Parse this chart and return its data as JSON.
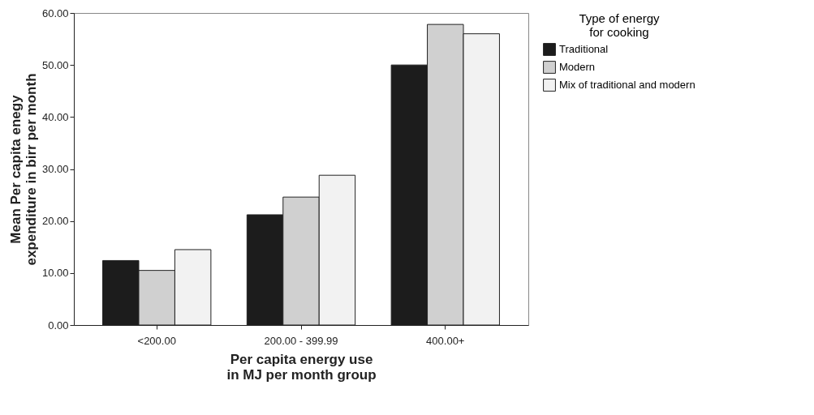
{
  "chart_data": {
    "type": "bar",
    "xlabel": "Per capita energy use in MJ per month group",
    "ylabel": "Mean Per capita enegy expenditure in birr per month",
    "legend_title": "Type of energy for cooking",
    "legend": "right",
    "grid": false,
    "categories": [
      "<200.00",
      "200.00 - 399.99",
      "400.00+"
    ],
    "ylim": [
      0,
      60
    ],
    "yticks": [
      {
        "value": 0,
        "label": "0.00"
      },
      {
        "value": 10,
        "label": "10.00"
      },
      {
        "value": 20,
        "label": "20.00"
      },
      {
        "value": 30,
        "label": "30.00"
      },
      {
        "value": 40,
        "label": "40.00"
      },
      {
        "value": 50,
        "label": "50.00"
      },
      {
        "value": 60,
        "label": "60.00"
      }
    ],
    "series": [
      {
        "name": "Traditional",
        "color": "#1c1c1c",
        "values": [
          12.4,
          21.2,
          50.0
        ]
      },
      {
        "name": "Modern",
        "color": "#d0d0d0",
        "values": [
          10.5,
          24.6,
          57.8
        ]
      },
      {
        "name": "Mix of traditional and modern",
        "color": "#f2f2f2",
        "values": [
          14.5,
          28.8,
          56.0
        ]
      }
    ]
  }
}
